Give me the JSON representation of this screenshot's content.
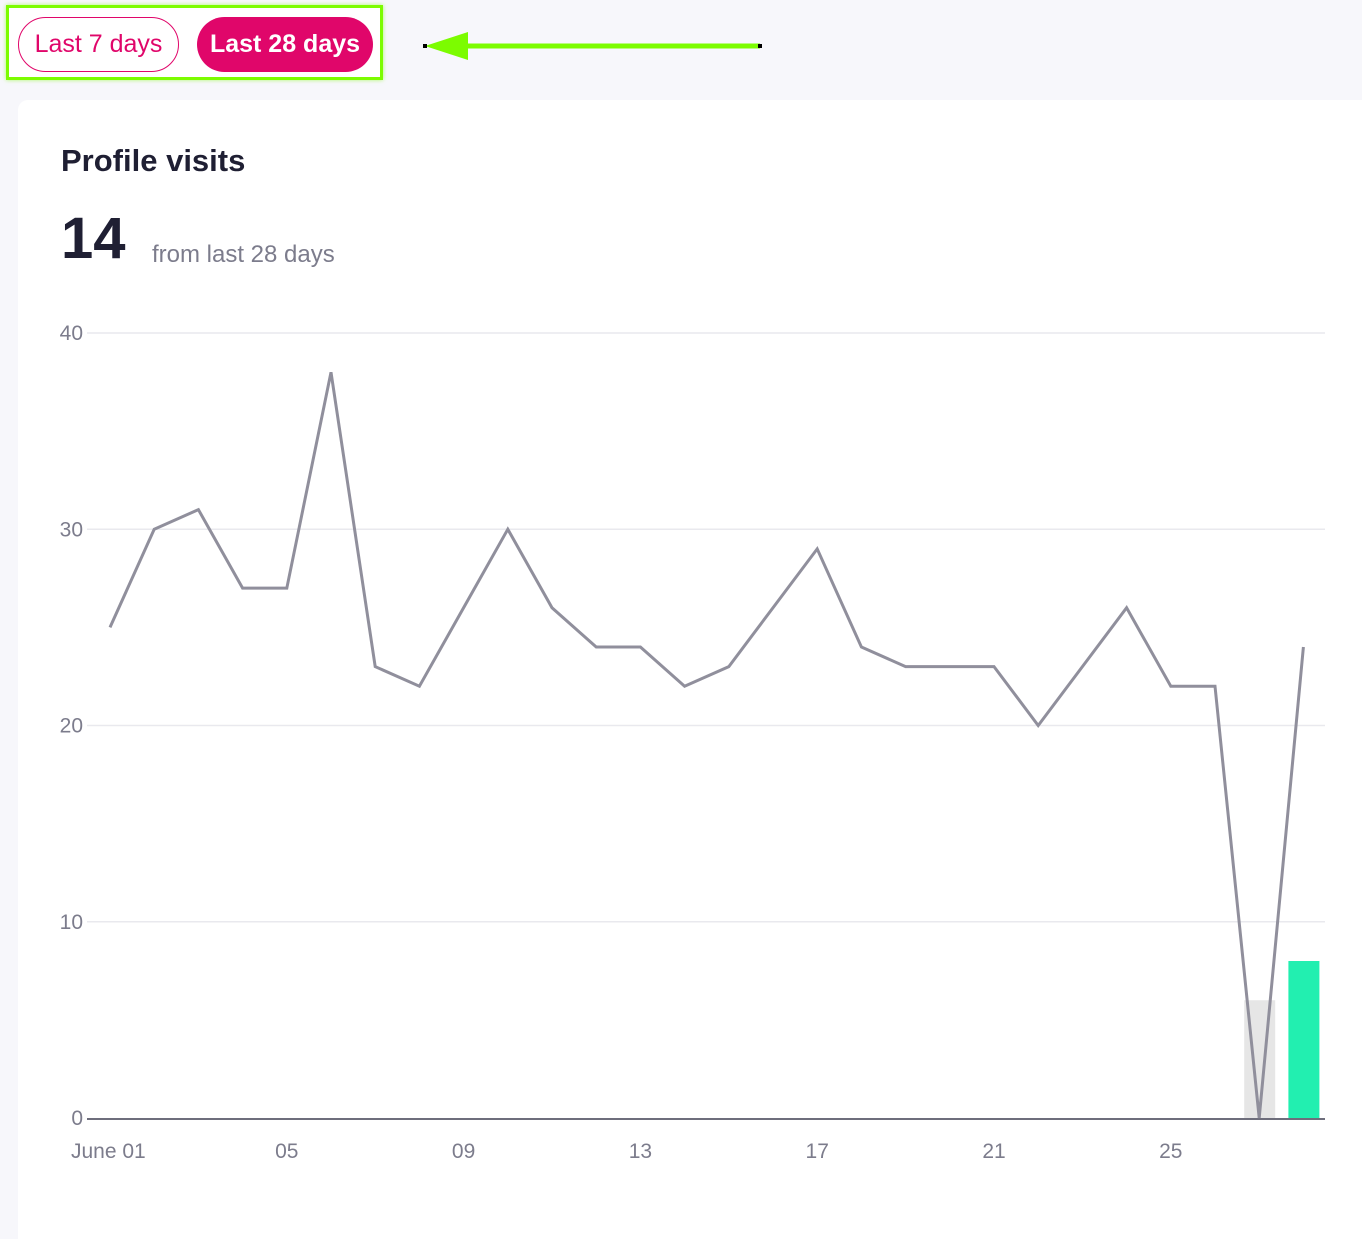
{
  "toggle": {
    "last7_label": "Last 7 days",
    "last28_label": "Last 28 days",
    "selected": "last28"
  },
  "card": {
    "title": "Profile visits",
    "total": "14",
    "total_caption": "from last 28 days"
  },
  "colors": {
    "accent": "#e0066a",
    "highlight": "#7cfc00",
    "line": "#908f9c",
    "bar_current": "#22efb0",
    "bar_previous": "#e6e6e6"
  },
  "chart_data": {
    "type": "line",
    "ylim": [
      0,
      40
    ],
    "yticks": [
      "0",
      "10",
      "20",
      "30",
      "40"
    ],
    "xticks": [
      {
        "label": "June 01",
        "day": 1
      },
      {
        "label": "05",
        "day": 5
      },
      {
        "label": "09",
        "day": 9
      },
      {
        "label": "13",
        "day": 13
      },
      {
        "label": "17",
        "day": 17
      },
      {
        "label": "21",
        "day": 21
      },
      {
        "label": "25",
        "day": 25
      }
    ],
    "series": [
      {
        "x": [
          1,
          2,
          3,
          4,
          5,
          6,
          7,
          8,
          9,
          10,
          11,
          12,
          13,
          14,
          15,
          16,
          17,
          18,
          19,
          20,
          21,
          22,
          23,
          24,
          25,
          26,
          27,
          28
        ],
        "values": [
          25,
          30,
          31,
          27,
          27,
          38,
          23,
          22,
          26,
          30,
          26,
          24,
          24,
          22,
          23,
          26,
          29,
          24,
          23,
          23,
          23,
          20,
          23,
          26,
          22,
          22,
          0,
          24
        ]
      }
    ],
    "bars": [
      {
        "day": 27,
        "value": 6,
        "color_key": "bar_previous"
      },
      {
        "day": 28,
        "value": 8,
        "color_key": "bar_current"
      }
    ],
    "grid": true
  }
}
